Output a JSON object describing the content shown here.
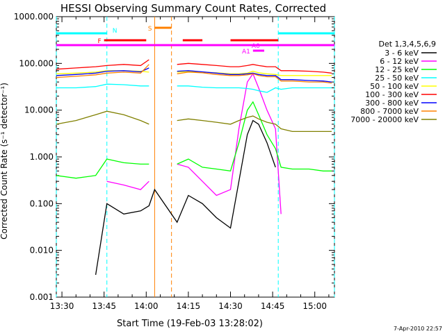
{
  "chart_data": {
    "type": "line",
    "title": "HESSI Observing Summary Count Rates, Corrected",
    "xlabel": "Start Time (19-Feb-03 13:28:02)",
    "ylabel": "Corrected Count Rate (s⁻¹ detector⁻¹)",
    "yscale": "log",
    "ylim": [
      0.001,
      1000
    ],
    "xlim": [
      "13:28",
      "15:07"
    ],
    "x_ticks": [
      "13:30",
      "13:45",
      "14:00",
      "14:15",
      "14:30",
      "14:45",
      "15:00"
    ],
    "y_ticks": [
      "0.001",
      "0.010",
      "0.100",
      "1.000",
      "10.000",
      "100.000",
      "1000.000"
    ],
    "legend_title": "Det 1,3,4,5,6,9",
    "legend_position": "right",
    "timestamp": "7-Apr-2010 22:57",
    "flag_labels": {
      "night": "N",
      "flare": "F",
      "saa": "S",
      "a0": "A0",
      "a1": "A1"
    },
    "flags": {
      "night": [
        [
          "13:28",
          "13:46"
        ],
        [
          "14:47",
          "15:07"
        ]
      ],
      "flare": [
        [
          "13:45",
          "14:00"
        ],
        [
          "14:13",
          "14:20"
        ],
        [
          "14:30",
          "14:47"
        ]
      ],
      "saa": [
        [
          "14:03",
          "14:09"
        ]
      ],
      "attenuator_a0": [
        [
          "13:28",
          "15:07"
        ]
      ],
      "attenuator_a1": [
        [
          "14:38",
          "14:42"
        ]
      ]
    },
    "markers": {
      "night_start_end": [
        "13:28",
        "13:46",
        "14:47",
        "15:07"
      ],
      "saa_start": "14:03",
      "saa_end": "14:09"
    },
    "gaps": [
      [
        "14:03",
        "14:11"
      ],
      [
        "14:47",
        "15:07"
      ]
    ],
    "x_minutes": [
      "13:28",
      "13:35",
      "13:42",
      "13:46",
      "13:52",
      "13:58",
      "14:01",
      "14:03",
      "14:11",
      "14:15",
      "14:20",
      "14:25",
      "14:30",
      "14:33",
      "14:36",
      "14:38",
      "14:40",
      "14:43",
      "14:46",
      "14:48",
      "14:52",
      "14:58",
      "15:03",
      "15:06"
    ],
    "series": [
      {
        "name": "3 - 6 keV",
        "color": "#000000",
        "values": [
          null,
          null,
          0.003,
          0.1,
          0.06,
          0.07,
          0.09,
          0.2,
          0.04,
          0.15,
          0.1,
          0.05,
          0.03,
          0.3,
          3,
          6,
          5,
          2,
          0.6,
          null,
          null,
          null,
          null,
          null
        ]
      },
      {
        "name": "6 - 12 keV",
        "color": "#ff00ff",
        "values": [
          null,
          null,
          null,
          0.3,
          0.25,
          0.2,
          0.3,
          null,
          0.7,
          0.6,
          0.3,
          0.15,
          0.2,
          4,
          40,
          60,
          30,
          10,
          4,
          0.06,
          null,
          null,
          null,
          null
        ]
      },
      {
        "name": "12 - 25 keV",
        "color": "#00ff00",
        "values": [
          0.4,
          0.35,
          0.4,
          0.9,
          0.75,
          0.7,
          0.7,
          null,
          0.7,
          0.9,
          0.6,
          0.55,
          0.5,
          2,
          10,
          15,
          8,
          3,
          1.5,
          0.6,
          0.55,
          0.55,
          0.5,
          0.5
        ]
      },
      {
        "name": "25 - 50 keV",
        "color": "#00ffff",
        "values": [
          30,
          30,
          32,
          36,
          35,
          33,
          33,
          null,
          33,
          33,
          31,
          30,
          30,
          30,
          29,
          28,
          26,
          24,
          30,
          28,
          30,
          30,
          30,
          30
        ]
      },
      {
        "name": "50 - 100 keV",
        "color": "#ffff00",
        "values": [
          60,
          62,
          65,
          70,
          70,
          68,
          65,
          null,
          65,
          67,
          65,
          63,
          60,
          60,
          62,
          68,
          63,
          60,
          58,
          55,
          55,
          55,
          55,
          55
        ]
      },
      {
        "name": "100 - 300 keV",
        "color": "#ff0000",
        "values": [
          75,
          80,
          85,
          90,
          95,
          90,
          120,
          null,
          95,
          100,
          95,
          90,
          85,
          85,
          90,
          95,
          90,
          85,
          85,
          70,
          70,
          68,
          65,
          62
        ]
      },
      {
        "name": "300 - 800 keV",
        "color": "#0000ff",
        "values": [
          55,
          58,
          62,
          68,
          70,
          66,
          80,
          null,
          68,
          70,
          66,
          62,
          58,
          58,
          60,
          62,
          58,
          55,
          55,
          45,
          45,
          43,
          42,
          40
        ]
      },
      {
        "name": "800 - 7000 keV",
        "color": "#ff8000",
        "values": [
          50,
          53,
          57,
          62,
          65,
          62,
          95,
          null,
          60,
          65,
          63,
          58,
          55,
          55,
          57,
          60,
          55,
          52,
          52,
          42,
          42,
          40,
          40,
          38
        ]
      },
      {
        "name": "7000 - 20000 keV",
        "color": "#808000",
        "values": [
          5,
          6,
          8,
          9.5,
          8,
          6,
          5,
          null,
          6,
          6.5,
          6,
          5.5,
          5,
          6,
          7,
          7.5,
          6.5,
          5.5,
          5,
          4,
          3.5,
          3.5,
          3.5,
          3.5
        ]
      }
    ]
  }
}
